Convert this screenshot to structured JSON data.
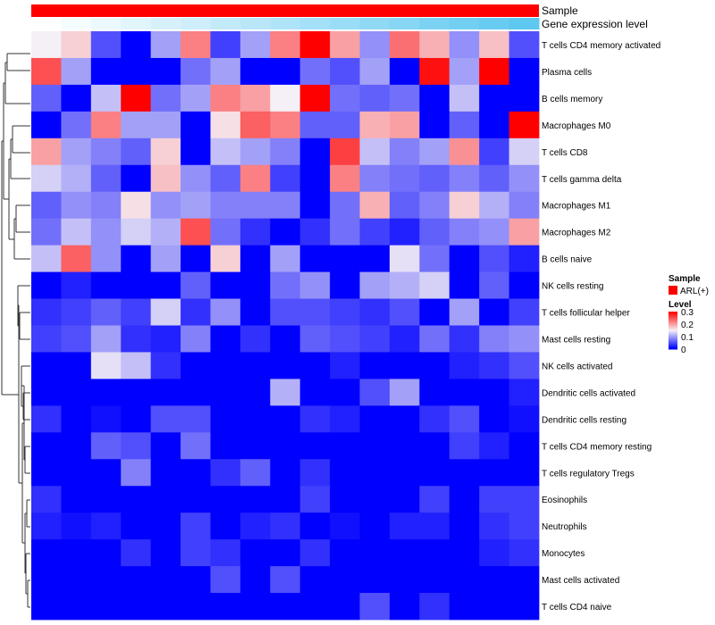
{
  "chart_data": {
    "type": "heatmap",
    "annotation_tracks": [
      {
        "name": "Sample",
        "kind": "categorical",
        "color": "#ff0000"
      },
      {
        "name": "Gene expression level",
        "kind": "gradient",
        "from_color": "#ffffff",
        "to_color": "#5ec8f0"
      }
    ],
    "rows": [
      "T cells CD4 memory activated",
      "Plasma cells",
      "B cells memory",
      "Macrophages M0",
      "T cells CD8",
      "T cells gamma delta",
      "Macrophages M1",
      "Macrophages M2",
      "B cells naive",
      "NK cells resting",
      "T cells follicular helper",
      "Mast cells resting",
      "NK cells activated",
      "Dendritic cells activated",
      "Dendritic cells resting",
      "T cells CD4 memory resting",
      "T cells regulatory  Tregs",
      "Eosinophils",
      "Neutrophils",
      "Monocytes",
      "Mast cells activated",
      "T cells CD4 naive"
    ],
    "n_columns": 17,
    "values": [
      [
        0.15,
        0.17,
        0.05,
        0.0,
        0.1,
        0.22,
        0.04,
        0.1,
        0.22,
        0.3,
        0.2,
        0.09,
        0.23,
        0.19,
        0.09,
        0.18,
        0.05
      ],
      [
        0.25,
        0.1,
        0.0,
        0.0,
        0.0,
        0.07,
        0.1,
        0.0,
        0.0,
        0.07,
        0.05,
        0.1,
        0.0,
        0.29,
        0.1,
        0.3,
        0.0
      ],
      [
        0.06,
        0.0,
        0.12,
        0.3,
        0.07,
        0.1,
        0.22,
        0.2,
        0.15,
        0.3,
        0.07,
        0.06,
        0.07,
        0.0,
        0.12,
        0.0,
        0.0
      ],
      [
        0.0,
        0.07,
        0.22,
        0.1,
        0.1,
        0.0,
        0.16,
        0.24,
        0.22,
        0.06,
        0.06,
        0.19,
        0.2,
        0.0,
        0.06,
        0.0,
        0.3
      ],
      [
        0.2,
        0.1,
        0.08,
        0.06,
        0.17,
        0.0,
        0.12,
        0.1,
        0.08,
        0.0,
        0.26,
        0.12,
        0.08,
        0.1,
        0.21,
        0.04,
        0.13
      ],
      [
        0.13,
        0.11,
        0.06,
        0.0,
        0.18,
        0.09,
        0.06,
        0.22,
        0.04,
        0.0,
        0.22,
        0.08,
        0.07,
        0.06,
        0.08,
        0.06,
        0.09
      ],
      [
        0.06,
        0.09,
        0.08,
        0.16,
        0.09,
        0.1,
        0.08,
        0.08,
        0.08,
        0.0,
        0.07,
        0.19,
        0.06,
        0.08,
        0.17,
        0.11,
        0.08
      ],
      [
        0.07,
        0.12,
        0.09,
        0.13,
        0.11,
        0.25,
        0.07,
        0.03,
        0.0,
        0.03,
        0.07,
        0.04,
        0.02,
        0.06,
        0.08,
        0.09,
        0.2
      ],
      [
        0.12,
        0.24,
        0.09,
        0.0,
        0.1,
        0.0,
        0.17,
        0.0,
        0.1,
        0.0,
        0.0,
        0.0,
        0.14,
        0.07,
        0.0,
        0.05,
        0.02
      ],
      [
        0.0,
        0.02,
        0.0,
        0.0,
        0.0,
        0.06,
        0.0,
        0.0,
        0.07,
        0.09,
        0.0,
        0.1,
        0.11,
        0.13,
        0.0,
        0.06,
        0.0
      ],
      [
        0.03,
        0.04,
        0.06,
        0.04,
        0.13,
        0.03,
        0.09,
        0.0,
        0.05,
        0.05,
        0.04,
        0.03,
        0.05,
        0.0,
        0.1,
        0.0,
        0.04
      ],
      [
        0.04,
        0.05,
        0.1,
        0.03,
        0.02,
        0.08,
        0.0,
        0.03,
        0.0,
        0.06,
        0.05,
        0.04,
        0.02,
        0.07,
        0.03,
        0.08,
        0.09
      ],
      [
        0.0,
        0.0,
        0.14,
        0.12,
        0.03,
        0.0,
        0.0,
        0.0,
        0.0,
        0.0,
        0.02,
        0.0,
        0.0,
        0.0,
        0.02,
        0.03,
        0.05
      ],
      [
        0.0,
        0.0,
        0.0,
        0.0,
        0.0,
        0.0,
        0.0,
        0.0,
        0.11,
        0.0,
        0.0,
        0.05,
        0.1,
        0.0,
        0.0,
        0.0,
        0.02
      ],
      [
        0.03,
        0.0,
        0.01,
        0.0,
        0.05,
        0.05,
        0.0,
        0.0,
        0.0,
        0.03,
        0.02,
        0.0,
        0.0,
        0.03,
        0.05,
        0.0,
        0.01
      ],
      [
        0.0,
        0.0,
        0.06,
        0.05,
        0.0,
        0.07,
        0.0,
        0.0,
        0.0,
        0.0,
        0.0,
        0.0,
        0.0,
        0.0,
        0.04,
        0.02,
        0.0
      ],
      [
        0.0,
        0.0,
        0.0,
        0.08,
        0.0,
        0.0,
        0.03,
        0.06,
        0.0,
        0.03,
        0.0,
        0.0,
        0.0,
        0.0,
        0.0,
        0.0,
        0.0
      ],
      [
        0.03,
        0.0,
        0.0,
        0.0,
        0.0,
        0.0,
        0.0,
        0.0,
        0.0,
        0.04,
        0.0,
        0.0,
        0.0,
        0.04,
        0.0,
        0.04,
        0.04
      ],
      [
        0.02,
        0.01,
        0.02,
        0.0,
        0.0,
        0.04,
        0.0,
        0.02,
        0.03,
        0.0,
        0.01,
        0.0,
        0.02,
        0.02,
        0.0,
        0.03,
        0.04
      ],
      [
        0.0,
        0.0,
        0.0,
        0.03,
        0.0,
        0.04,
        0.03,
        0.0,
        0.0,
        0.03,
        0.0,
        0.0,
        0.0,
        0.0,
        0.0,
        0.02,
        0.03
      ],
      [
        0.0,
        0.0,
        0.0,
        0.0,
        0.0,
        0.0,
        0.05,
        0.0,
        0.05,
        0.0,
        0.0,
        0.0,
        0.0,
        0.0,
        0.0,
        0.0,
        0.0
      ],
      [
        0.0,
        0.0,
        0.0,
        0.0,
        0.0,
        0.0,
        0.0,
        0.0,
        0.0,
        0.0,
        0.0,
        0.05,
        0.0,
        0.03,
        0.0,
        0.0,
        0.0
      ]
    ],
    "color_scale": {
      "min": 0,
      "mid": 0.15,
      "max": 0.3,
      "low_color": "#0000ff",
      "mid_color": "#f5f0f5",
      "high_color": "#ff0000"
    },
    "legend": {
      "sample_title": "Sample",
      "sample_entry": "ARL(+)",
      "level_title": "Level",
      "level_ticks": [
        "0.3",
        "0.2",
        "0.1",
        "0"
      ],
      "level_tick_values": [
        0.3,
        0.2,
        0.1,
        0
      ]
    }
  }
}
